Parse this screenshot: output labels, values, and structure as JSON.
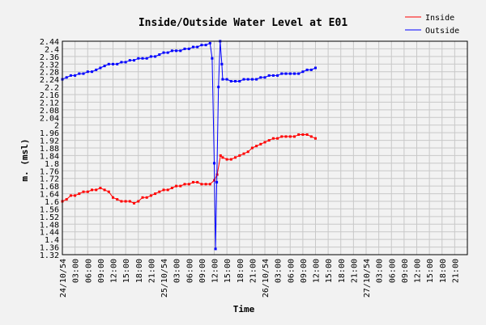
{
  "chart_data": {
    "type": "line",
    "title": "Inside/Outside Water Level at E01",
    "xlabel": "Time",
    "ylabel": "m. (msl)",
    "ylim": [
      1.32,
      2.44
    ],
    "yticks": [
      "2.44",
      "2.4",
      "2.36",
      "2.32",
      "2.28",
      "2.24",
      "2.2",
      "2.16",
      "2.12",
      "2.08",
      "2.04",
      "2",
      "1.96",
      "1.92",
      "1.88",
      "1.84",
      "1.8",
      "1.76",
      "1.72",
      "1.68",
      "1.64",
      "1.6",
      "1.56",
      "1.52",
      "1.48",
      "1.44",
      "1.4",
      "1.36",
      "1.32"
    ],
    "xticks": [
      "24/10/54",
      "03:00",
      "06:00",
      "09:00",
      "12:00",
      "15:00",
      "18:00",
      "21:00",
      "25/10/54",
      "03:00",
      "06:00",
      "09:00",
      "12:00",
      "15:00",
      "18:00",
      "21:00",
      "26/10/54",
      "03:00",
      "06:00",
      "09:00",
      "12:00",
      "15:00",
      "18:00",
      "21:00",
      "27/10/54",
      "03:00",
      "06:00",
      "09:00",
      "12:00",
      "15:00",
      "18:00",
      "21:00"
    ],
    "xlim_hours": [
      0,
      96
    ],
    "grid": true,
    "legend_position": "top-right",
    "series": [
      {
        "name": "Inside",
        "color": "#ff0000",
        "points": [
          [
            0,
            1.6
          ],
          [
            1,
            1.61
          ],
          [
            2,
            1.63
          ],
          [
            3,
            1.63
          ],
          [
            4,
            1.64
          ],
          [
            5,
            1.65
          ],
          [
            6,
            1.65
          ],
          [
            7,
            1.66
          ],
          [
            8,
            1.66
          ],
          [
            9,
            1.67
          ],
          [
            10,
            1.66
          ],
          [
            11,
            1.65
          ],
          [
            12,
            1.62
          ],
          [
            13,
            1.61
          ],
          [
            14,
            1.6
          ],
          [
            15,
            1.6
          ],
          [
            16,
            1.6
          ],
          [
            17,
            1.59
          ],
          [
            18,
            1.6
          ],
          [
            19,
            1.62
          ],
          [
            20,
            1.62
          ],
          [
            21,
            1.63
          ],
          [
            22,
            1.64
          ],
          [
            23,
            1.65
          ],
          [
            24,
            1.66
          ],
          [
            25,
            1.66
          ],
          [
            26,
            1.67
          ],
          [
            27,
            1.68
          ],
          [
            28,
            1.68
          ],
          [
            29,
            1.69
          ],
          [
            30,
            1.69
          ],
          [
            31,
            1.7
          ],
          [
            32,
            1.7
          ],
          [
            33,
            1.69
          ],
          [
            34,
            1.69
          ],
          [
            35,
            1.69
          ],
          [
            36,
            1.71
          ],
          [
            36.7,
            1.74
          ],
          [
            37.5,
            1.84
          ],
          [
            38,
            1.83
          ],
          [
            39,
            1.82
          ],
          [
            40,
            1.82
          ],
          [
            41,
            1.83
          ],
          [
            42,
            1.84
          ],
          [
            43,
            1.85
          ],
          [
            44,
            1.86
          ],
          [
            45,
            1.88
          ],
          [
            46,
            1.89
          ],
          [
            47,
            1.9
          ],
          [
            48,
            1.91
          ],
          [
            49,
            1.92
          ],
          [
            50,
            1.93
          ],
          [
            51,
            1.93
          ],
          [
            52,
            1.94
          ],
          [
            53,
            1.94
          ],
          [
            54,
            1.94
          ],
          [
            55,
            1.94
          ],
          [
            56,
            1.95
          ],
          [
            57,
            1.95
          ],
          [
            58,
            1.95
          ],
          [
            59,
            1.94
          ],
          [
            60,
            1.93
          ]
        ]
      },
      {
        "name": "Outside",
        "color": "#0000ff",
        "points": [
          [
            0,
            2.24
          ],
          [
            1,
            2.25
          ],
          [
            2,
            2.26
          ],
          [
            3,
            2.26
          ],
          [
            4,
            2.27
          ],
          [
            5,
            2.27
          ],
          [
            6,
            2.28
          ],
          [
            7,
            2.28
          ],
          [
            8,
            2.29
          ],
          [
            9,
            2.3
          ],
          [
            10,
            2.31
          ],
          [
            11,
            2.32
          ],
          [
            12,
            2.32
          ],
          [
            13,
            2.32
          ],
          [
            14,
            2.33
          ],
          [
            15,
            2.33
          ],
          [
            16,
            2.34
          ],
          [
            17,
            2.34
          ],
          [
            18,
            2.35
          ],
          [
            19,
            2.35
          ],
          [
            20,
            2.35
          ],
          [
            21,
            2.36
          ],
          [
            22,
            2.36
          ],
          [
            23,
            2.37
          ],
          [
            24,
            2.38
          ],
          [
            25,
            2.38
          ],
          [
            26,
            2.39
          ],
          [
            27,
            2.39
          ],
          [
            28,
            2.39
          ],
          [
            29,
            2.4
          ],
          [
            30,
            2.4
          ],
          [
            31,
            2.41
          ],
          [
            32,
            2.41
          ],
          [
            33,
            2.42
          ],
          [
            34,
            2.42
          ],
          [
            35,
            2.43
          ],
          [
            35.5,
            2.35
          ],
          [
            36,
            1.8
          ],
          [
            36.3,
            1.35
          ],
          [
            36.6,
            1.7
          ],
          [
            37,
            2.2
          ],
          [
            37.4,
            2.44
          ],
          [
            37.8,
            2.32
          ],
          [
            38,
            2.24
          ],
          [
            39,
            2.24
          ],
          [
            40,
            2.23
          ],
          [
            41,
            2.23
          ],
          [
            42,
            2.23
          ],
          [
            43,
            2.24
          ],
          [
            44,
            2.24
          ],
          [
            45,
            2.24
          ],
          [
            46,
            2.24
          ],
          [
            47,
            2.25
          ],
          [
            48,
            2.25
          ],
          [
            49,
            2.26
          ],
          [
            50,
            2.26
          ],
          [
            51,
            2.26
          ],
          [
            52,
            2.27
          ],
          [
            53,
            2.27
          ],
          [
            54,
            2.27
          ],
          [
            55,
            2.27
          ],
          [
            56,
            2.27
          ],
          [
            57,
            2.28
          ],
          [
            58,
            2.29
          ],
          [
            59,
            2.29
          ],
          [
            60,
            2.3
          ]
        ]
      }
    ]
  }
}
